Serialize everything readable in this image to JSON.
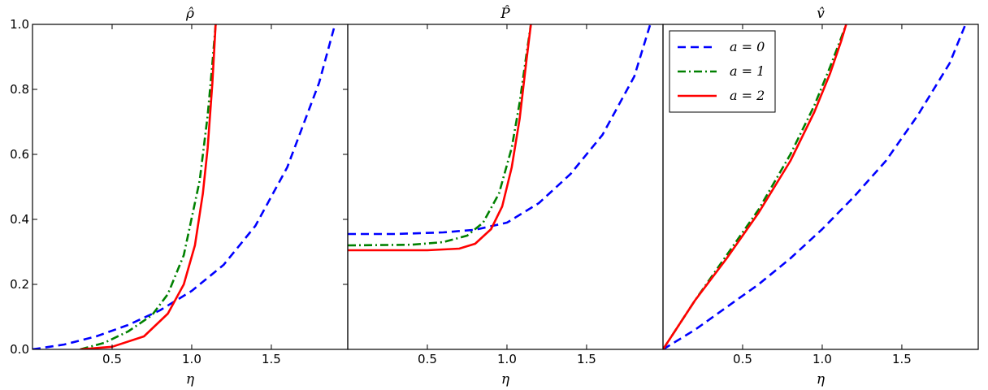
{
  "colors": {
    "a0": "#0000ff",
    "a1": "#008000",
    "a2": "#ff0000",
    "frame": "#000000"
  },
  "chart_data": [
    {
      "type": "line",
      "title": "ρ̂",
      "xlabel": "η",
      "ylabel": "",
      "xlim": [
        0.0,
        1.98
      ],
      "ylim": [
        0.0,
        1.0
      ],
      "xticks": [
        "0.5",
        "1.0",
        "1.5"
      ],
      "yticks": [
        "0.0",
        "0.2",
        "0.4",
        "0.6",
        "0.8",
        "1.0"
      ],
      "series": [
        {
          "name": "a = 0",
          "style": "dashed",
          "color": "#0000ff",
          "x": [
            0.0,
            0.2,
            0.4,
            0.6,
            0.8,
            1.0,
            1.2,
            1.4,
            1.6,
            1.8,
            1.9
          ],
          "y": [
            0.0,
            0.015,
            0.04,
            0.075,
            0.12,
            0.18,
            0.26,
            0.38,
            0.56,
            0.82,
            1.0
          ]
        },
        {
          "name": "a = 1",
          "style": "dashdot",
          "color": "#008000",
          "x": [
            0.3,
            0.45,
            0.6,
            0.75,
            0.85,
            0.95,
            1.05,
            1.1,
            1.13,
            1.15
          ],
          "y": [
            0.0,
            0.02,
            0.055,
            0.105,
            0.17,
            0.29,
            0.52,
            0.72,
            0.88,
            1.0
          ]
        },
        {
          "name": "a = 2",
          "style": "solid",
          "color": "#ff0000",
          "x": [
            0.3,
            0.5,
            0.7,
            0.85,
            0.95,
            1.02,
            1.07,
            1.1,
            1.13,
            1.15
          ],
          "y": [
            0.0,
            0.008,
            0.04,
            0.11,
            0.2,
            0.32,
            0.48,
            0.62,
            0.82,
            1.0
          ]
        }
      ]
    },
    {
      "type": "line",
      "title": "P̂",
      "xlabel": "η",
      "ylabel": "",
      "xlim": [
        0.0,
        1.98
      ],
      "ylim": [
        0.0,
        1.0
      ],
      "xticks": [
        "0.5",
        "1.0",
        "1.5"
      ],
      "yticks": [],
      "series": [
        {
          "name": "a = 0",
          "style": "dashed",
          "color": "#0000ff",
          "x": [
            0.0,
            0.3,
            0.6,
            0.8,
            1.0,
            1.2,
            1.4,
            1.6,
            1.8,
            1.9
          ],
          "y": [
            0.355,
            0.355,
            0.36,
            0.368,
            0.39,
            0.45,
            0.54,
            0.66,
            0.84,
            1.0
          ]
        },
        {
          "name": "a = 1",
          "style": "dashdot",
          "color": "#008000",
          "x": [
            0.0,
            0.4,
            0.6,
            0.75,
            0.85,
            0.95,
            1.03,
            1.08,
            1.12,
            1.15
          ],
          "y": [
            0.32,
            0.322,
            0.33,
            0.35,
            0.39,
            0.48,
            0.62,
            0.76,
            0.9,
            1.0
          ]
        },
        {
          "name": "a = 2",
          "style": "solid",
          "color": "#ff0000",
          "x": [
            0.0,
            0.5,
            0.7,
            0.8,
            0.9,
            0.97,
            1.03,
            1.08,
            1.12,
            1.15
          ],
          "y": [
            0.305,
            0.305,
            0.31,
            0.325,
            0.37,
            0.44,
            0.56,
            0.71,
            0.88,
            1.0
          ]
        }
      ]
    },
    {
      "type": "line",
      "title": "v̂",
      "xlabel": "η",
      "ylabel": "",
      "xlim": [
        0.0,
        1.98
      ],
      "ylim": [
        0.0,
        1.0
      ],
      "xticks": [
        "0.5",
        "1.0",
        "1.5"
      ],
      "yticks": [],
      "series": [
        {
          "name": "a = 0",
          "style": "dashed",
          "color": "#0000ff",
          "x": [
            0.0,
            0.2,
            0.4,
            0.6,
            0.8,
            1.0,
            1.2,
            1.4,
            1.6,
            1.8,
            1.9
          ],
          "y": [
            0.0,
            0.06,
            0.13,
            0.2,
            0.28,
            0.37,
            0.47,
            0.58,
            0.72,
            0.88,
            1.0
          ]
        },
        {
          "name": "a = 1",
          "style": "dashdot",
          "color": "#008000",
          "x": [
            0.0,
            0.2,
            0.4,
            0.6,
            0.8,
            0.95,
            1.05,
            1.12,
            1.15
          ],
          "y": [
            0.0,
            0.15,
            0.29,
            0.43,
            0.6,
            0.75,
            0.87,
            0.96,
            1.0
          ]
        },
        {
          "name": "a = 2",
          "style": "solid",
          "color": "#ff0000",
          "x": [
            0.0,
            0.2,
            0.4,
            0.6,
            0.8,
            0.95,
            1.05,
            1.12,
            1.15
          ],
          "y": [
            0.0,
            0.15,
            0.28,
            0.42,
            0.58,
            0.73,
            0.85,
            0.95,
            1.0
          ]
        }
      ]
    }
  ],
  "legend": {
    "placement": "top-left",
    "entries": [
      {
        "label": "a = 0",
        "style": "dashed",
        "color": "#0000ff"
      },
      {
        "label": "a = 1",
        "style": "dashdot",
        "color": "#008000"
      },
      {
        "label": "a = 2",
        "style": "solid",
        "color": "#ff0000"
      }
    ]
  }
}
